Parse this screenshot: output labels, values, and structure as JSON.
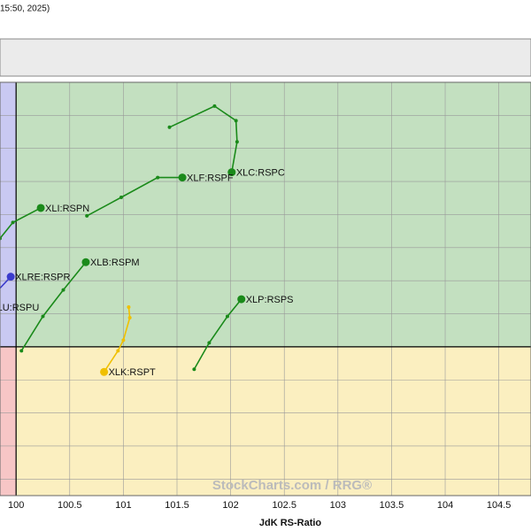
{
  "header": {
    "timestamp": "15:50, 2025)"
  },
  "chart_data": {
    "type": "rrg",
    "x_label": "JdK RS-Ratio",
    "watermark": "StockCharts.com / RRG®",
    "xlim": [
      99.85,
      104.8
    ],
    "xticks": [
      100,
      100.5,
      101,
      101.5,
      102,
      102.5,
      103,
      103.5,
      104,
      104.5
    ],
    "ylim": [
      98.875,
      102
    ],
    "yticks": [
      99,
      99.25,
      99.5,
      99.75,
      100,
      100.25,
      100.5,
      100.75,
      101,
      101.25,
      101.5,
      101.75,
      102
    ],
    "grid": true,
    "center": [
      100,
      100
    ],
    "quadrant_colors": {
      "leading": "#c3e0c0",
      "weakening": "#fbefc0",
      "lagging": "#f7c6c6",
      "improving": "#c9c9f2"
    },
    "series": [
      {
        "name": "XLC:RSPC",
        "color": "#1a8a1a",
        "x": [
          101.43,
          101.85,
          102.05,
          102.06,
          102.01
        ],
        "values": [
          101.66,
          101.82,
          101.71,
          101.55,
          101.32
        ]
      },
      {
        "name": "XLF:RSPF",
        "color": "#1a8a1a",
        "x": [
          100.66,
          100.98,
          101.32,
          101.55
        ],
        "values": [
          100.99,
          101.13,
          101.28,
          101.28
        ]
      },
      {
        "name": "XLI:RSPN",
        "color": "#1a8a1a",
        "x": [
          99.85,
          99.97,
          100.23
        ],
        "values": [
          100.82,
          100.94,
          101.05
        ]
      },
      {
        "name": "XLB:RSPM",
        "color": "#1a8a1a",
        "x": [
          100.05,
          100.25,
          100.44,
          100.65
        ],
        "values": [
          99.97,
          100.23,
          100.43,
          100.64
        ]
      },
      {
        "name": "XLRE:RSPR",
        "color": "#3a3acc",
        "x": [
          99.8,
          99.95
        ],
        "values": [
          100.4,
          100.53
        ]
      },
      {
        "name": "XLU:RSPU",
        "color": "#3a3acc",
        "x": [
          99.7,
          99.72
        ],
        "values": [
          100.35,
          100.3
        ]
      },
      {
        "name": "XLP:RSPS",
        "color": "#1a8a1a",
        "x": [
          101.66,
          101.8,
          101.97,
          102.1
        ],
        "values": [
          99.83,
          100.03,
          100.23,
          100.36
        ]
      },
      {
        "name": "XLK:RSPT",
        "color": "#f0c000",
        "x": [
          101.05,
          101.06,
          101.0,
          100.95,
          100.82
        ],
        "values": [
          100.3,
          100.22,
          100.05,
          99.97,
          99.81
        ]
      }
    ]
  }
}
